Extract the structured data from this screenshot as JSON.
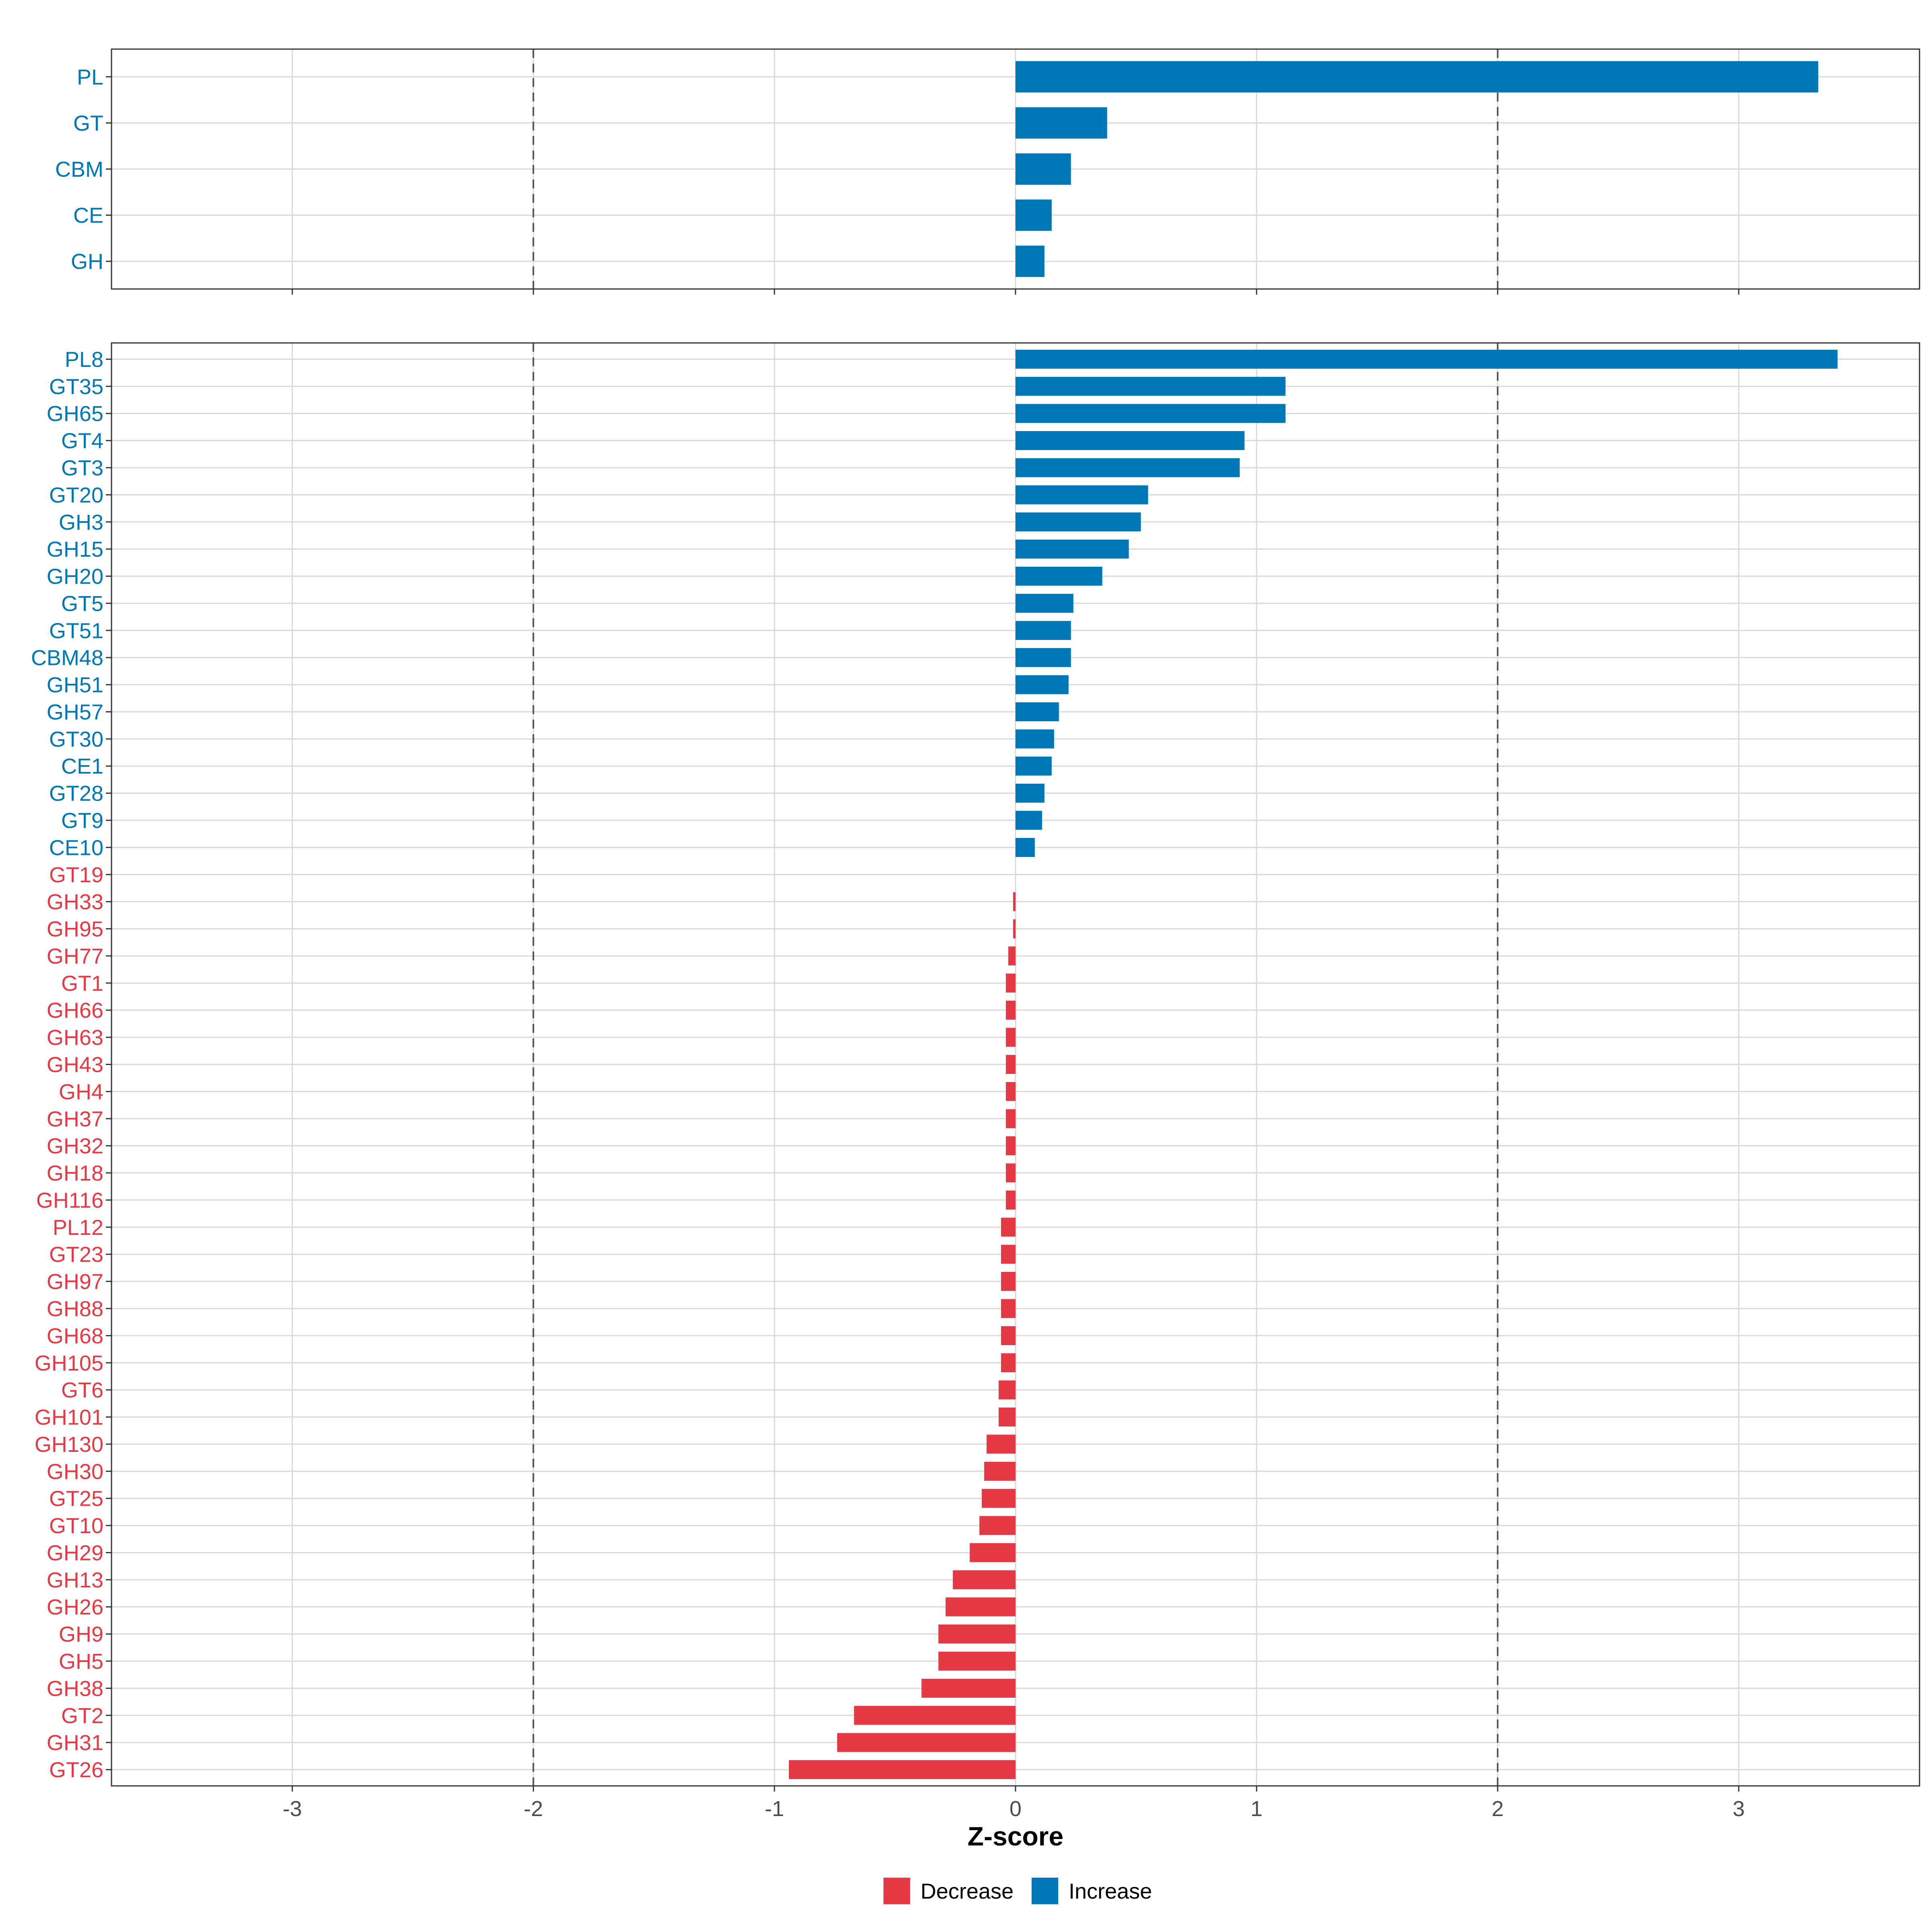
{
  "colors": {
    "decrease": "#e63946",
    "increase": "#0077b6",
    "grid": "#d9d9d9",
    "frame": "#333333",
    "ref_line": "#555555"
  },
  "chart_data": [
    {
      "type": "bar",
      "orientation": "horizontal",
      "panel": "top",
      "categories": [
        "PL",
        "GT",
        "CBM",
        "CE",
        "GH"
      ],
      "values": [
        3.33,
        0.38,
        0.23,
        0.15,
        0.12
      ],
      "xlim": [
        -3.75,
        3.75
      ],
      "xticks": [
        -3,
        -2,
        -1,
        0,
        1,
        2,
        3
      ],
      "xtick_labels": [
        "-3",
        "-2",
        "-1",
        "0",
        "1",
        "2",
        "3"
      ],
      "reference_lines": [
        -2,
        2
      ],
      "show_tick_labels": false
    },
    {
      "type": "bar",
      "orientation": "horizontal",
      "panel": "bottom",
      "categories": [
        "PL8",
        "GT35",
        "GH65",
        "GT4",
        "GT3",
        "GT20",
        "GH3",
        "GH15",
        "GH20",
        "GT5",
        "GT51",
        "CBM48",
        "GH51",
        "GH57",
        "GT30",
        "CE1",
        "GT28",
        "GT9",
        "CE10",
        "GT19",
        "GH33",
        "GH95",
        "GH77",
        "GT1",
        "GH66",
        "GH63",
        "GH43",
        "GH4",
        "GH37",
        "GH32",
        "GH18",
        "GH116",
        "PL12",
        "GT23",
        "GH97",
        "GH88",
        "GH68",
        "GH105",
        "GT6",
        "GH101",
        "GH130",
        "GH30",
        "GT25",
        "GT10",
        "GH29",
        "GH13",
        "GH26",
        "GH9",
        "GH5",
        "GH38",
        "GT2",
        "GH31",
        "GT26"
      ],
      "values": [
        3.41,
        1.12,
        1.12,
        0.95,
        0.93,
        0.55,
        0.52,
        0.47,
        0.36,
        0.24,
        0.23,
        0.23,
        0.22,
        0.18,
        0.16,
        0.15,
        0.12,
        0.11,
        0.08,
        0.0,
        -0.01,
        -0.01,
        -0.03,
        -0.04,
        -0.04,
        -0.04,
        -0.04,
        -0.04,
        -0.04,
        -0.04,
        -0.04,
        -0.04,
        -0.06,
        -0.06,
        -0.06,
        -0.06,
        -0.06,
        -0.06,
        -0.07,
        -0.07,
        -0.12,
        -0.13,
        -0.14,
        -0.15,
        -0.19,
        -0.26,
        -0.29,
        -0.32,
        -0.32,
        -0.39,
        -0.67,
        -0.74,
        -0.94
      ],
      "xlim": [
        -3.75,
        3.75
      ],
      "xticks": [
        -3,
        -2,
        -1,
        0,
        1,
        2,
        3
      ],
      "xtick_labels": [
        "-3",
        "-2",
        "-1",
        "0",
        "1",
        "2",
        "3"
      ],
      "reference_lines": [
        -2,
        2
      ],
      "show_tick_labels": true,
      "xlabel": "Z-score"
    }
  ],
  "legend": {
    "items": [
      {
        "label": "Decrease",
        "color_key": "decrease"
      },
      {
        "label": "Increase",
        "color_key": "increase"
      }
    ]
  }
}
